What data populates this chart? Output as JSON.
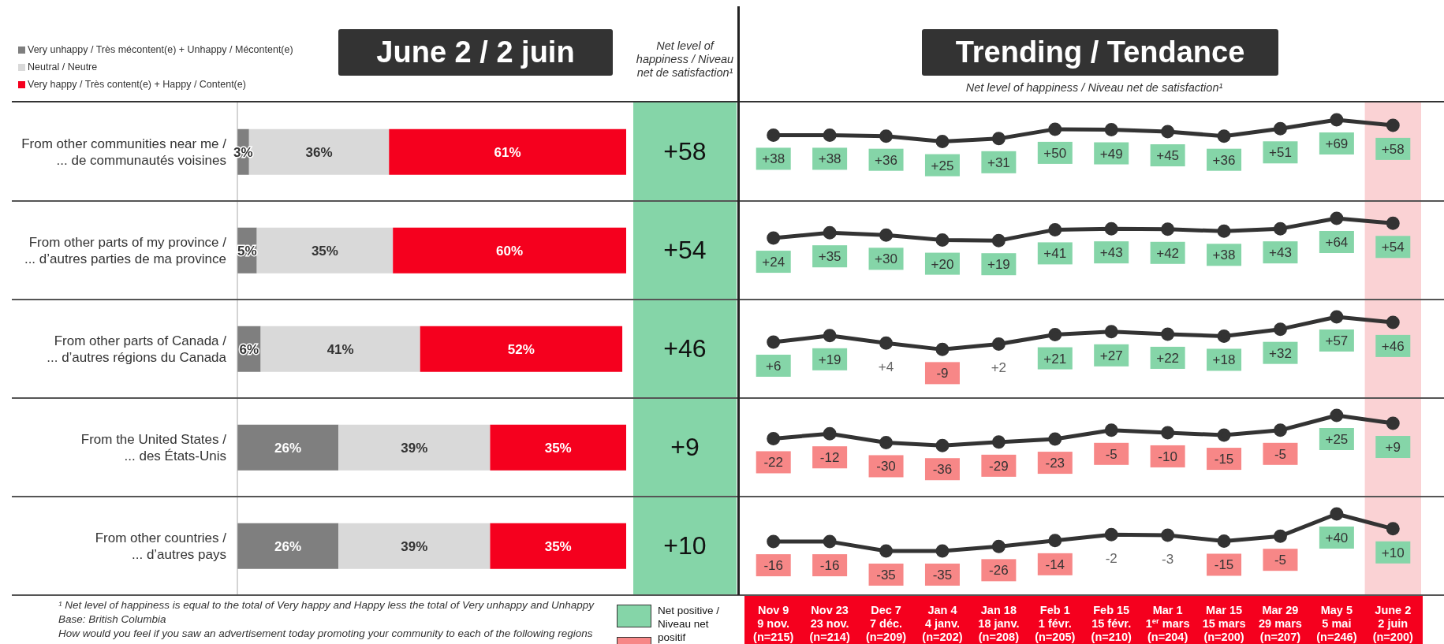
{
  "chart_data": [
    {
      "type": "bar",
      "orientation": "horizontal",
      "stacked": true,
      "title": "June 2 / 2 juin",
      "legend": "top left",
      "categories": [
        "From other communities near me /\n... de communautés voisines",
        "From other parts of my province /\n... d’autres parties de ma province",
        "From other parts of Canada /\n... d’autres régions du Canada",
        "From the United States /\n... des États-Unis",
        "From other countries /\n... d’autres pays"
      ],
      "series": [
        {
          "name": "Very unhappy / Très mécontent(e) + Unhappy / Mécontent(e)",
          "color": "#7f7f7f",
          "values": [
            3,
            5,
            6,
            26,
            26
          ],
          "value_labels": [
            "3%",
            "5%",
            "6%",
            "26%",
            "26%"
          ]
        },
        {
          "name": "Neutral / Neutre",
          "color": "#d9d9d9",
          "values": [
            36,
            35,
            41,
            39,
            39
          ],
          "value_labels": [
            "36%",
            "35%",
            "41%",
            "39%",
            "39%"
          ]
        },
        {
          "name": "Very happy / Très content(e) + Happy / Content(e)",
          "color": "#f5001e",
          "values": [
            61,
            60,
            52,
            35,
            35
          ],
          "value_labels": [
            "61%",
            "60%",
            "52%",
            "35%",
            "35%"
          ]
        }
      ]
    },
    {
      "type": "other",
      "title": "Net level of happiness / Niveau net de satisfaction¹",
      "categories": [
        null,
        null,
        null,
        null,
        null
      ],
      "values": [
        58,
        54,
        46,
        9,
        10
      ],
      "value_labels": [
        "+58",
        "+54",
        "+46",
        "+9",
        "+10"
      ],
      "color": "#85d5a8"
    },
    {
      "type": "line",
      "title": "Trending / Tendance",
      "subtitle": "Net level of happiness / Niveau net de satisfaction¹",
      "tick_labels": false,
      "marker": "circle",
      "line_style": "solid",
      "categories": [
        "Nov 9\n9 nov.\n(n=215)",
        "Nov 23\n23 nov.\n(n=214)",
        "Dec 7\n7 déc.\n(n=209)",
        "Jan 4\n4 janv.\n(n=202)",
        "Jan 18\n18 janv.\n(n=208)",
        "Feb 1\n1 févr.\n(n=205)",
        "Feb 15\n15 févr.\n(n=210)",
        "Mar 1\n1$^{er}$ mars\n(n=204)",
        "Mar 15\n15 mars\n(n=200)",
        "Mar 29\n29 mars\n(n=207)",
        "May 5\n5 mai\n(n=246)",
        "June 2\n2 juin\n(n=200)"
      ],
      "color": "#333333",
      "values": [
        38,
        38,
        36,
        25,
        31,
        50,
        49,
        45,
        36,
        51,
        69,
        58
      ],
      "value_labels": [
        "+38",
        "+38",
        "+36",
        "+25",
        "+31",
        "+50",
        "+49",
        "+45",
        "+36",
        "+51",
        "+69",
        "+58"
      ],
      "colors": [
        "#85d5a8",
        "#85d5a8",
        "#85d5a8",
        "#85d5a8",
        "#85d5a8",
        "#85d5a8",
        "#85d5a8",
        "#85d5a8",
        "#85d5a8",
        "#85d5a8",
        "#85d5a8",
        "#85d5a8"
      ],
      "bands": [
        {
          "axis": "x",
          "from": "June 2\n2 juin\n(n=200)",
          "to": "June 2\n2 juin\n(n=200)",
          "color": "#fad2d4"
        }
      ]
    },
    {
      "type": "line",
      "tick_labels": false,
      "marker": "circle",
      "line_style": "solid",
      "categories": [
        "Nov 9\n9 nov.\n(n=215)",
        "Nov 23\n23 nov.\n(n=214)",
        "Dec 7\n7 déc.\n(n=209)",
        "Jan 4\n4 janv.\n(n=202)",
        "Jan 18\n18 janv.\n(n=208)",
        "Feb 1\n1 févr.\n(n=205)",
        "Feb 15\n15 févr.\n(n=210)",
        "Mar 1\n1$^{er}$ mars\n(n=204)",
        "Mar 15\n15 mars\n(n=200)",
        "Mar 29\n29 mars\n(n=207)",
        "May 5\n5 mai\n(n=246)",
        "June 2\n2 juin\n(n=200)"
      ],
      "color": "#333333",
      "values": [
        24,
        35,
        30,
        20,
        19,
        41,
        43,
        42,
        38,
        43,
        64,
        54
      ],
      "value_labels": [
        "+24",
        "+35",
        "+30",
        "+20",
        "+19",
        "+41",
        "+43",
        "+42",
        "+38",
        "+43",
        "+64",
        "+54"
      ],
      "colors": [
        "#85d5a8",
        "#85d5a8",
        "#85d5a8",
        "#85d5a8",
        "#85d5a8",
        "#85d5a8",
        "#85d5a8",
        "#85d5a8",
        "#85d5a8",
        "#85d5a8",
        "#85d5a8",
        "#85d5a8"
      ],
      "bands": [
        {
          "axis": "x",
          "from": "June 2\n2 juin\n(n=200)",
          "to": "June 2\n2 juin\n(n=200)",
          "color": "#fad2d4"
        }
      ]
    },
    {
      "type": "line",
      "tick_labels": false,
      "marker": "circle",
      "line_style": "solid",
      "categories": [
        "Nov 9\n9 nov.\n(n=215)",
        "Nov 23\n23 nov.\n(n=214)",
        "Dec 7\n7 déc.\n(n=209)",
        "Jan 4\n4 janv.\n(n=202)",
        "Jan 18\n18 janv.\n(n=208)",
        "Feb 1\n1 févr.\n(n=205)",
        "Feb 15\n15 févr.\n(n=210)",
        "Mar 1\n1$^{er}$ mars\n(n=204)",
        "Mar 15\n15 mars\n(n=200)",
        "Mar 29\n29 mars\n(n=207)",
        "May 5\n5 mai\n(n=246)",
        "June 2\n2 juin\n(n=200)"
      ],
      "color": "#333333",
      "values": [
        6,
        19,
        4,
        -9,
        2,
        21,
        27,
        22,
        18,
        32,
        57,
        46
      ],
      "value_labels": [
        "+6",
        "+19",
        "+4",
        "-9",
        "+2",
        "+21",
        "+27",
        "+22",
        "+18",
        "+32",
        "+57",
        "+46"
      ],
      "colors": [
        "#85d5a8",
        "#85d5a8",
        null,
        "#f78787",
        null,
        "#85d5a8",
        "#85d5a8",
        "#85d5a8",
        "#85d5a8",
        "#85d5a8",
        "#85d5a8",
        "#85d5a8"
      ],
      "bands": [
        {
          "axis": "x",
          "from": "June 2\n2 juin\n(n=200)",
          "to": "June 2\n2 juin\n(n=200)",
          "color": "#fad2d4"
        }
      ]
    },
    {
      "type": "line",
      "tick_labels": false,
      "marker": "circle",
      "line_style": "solid",
      "categories": [
        "Nov 9\n9 nov.\n(n=215)",
        "Nov 23\n23 nov.\n(n=214)",
        "Dec 7\n7 déc.\n(n=209)",
        "Jan 4\n4 janv.\n(n=202)",
        "Jan 18\n18 janv.\n(n=208)",
        "Feb 1\n1 févr.\n(n=205)",
        "Feb 15\n15 févr.\n(n=210)",
        "Mar 1\n1$^{er}$ mars\n(n=204)",
        "Mar 15\n15 mars\n(n=200)",
        "Mar 29\n29 mars\n(n=207)",
        "May 5\n5 mai\n(n=246)",
        "June 2\n2 juin\n(n=200)"
      ],
      "color": "#333333",
      "values": [
        -22,
        -12,
        -30,
        -36,
        -29,
        -23,
        -5,
        -10,
        -15,
        -5,
        25,
        9
      ],
      "value_labels": [
        "-22",
        "-12",
        "-30",
        "-36",
        "-29",
        "-23",
        "-5",
        "-10",
        "-15",
        "-5",
        "+25",
        "+9"
      ],
      "colors": [
        "#f78787",
        "#f78787",
        "#f78787",
        "#f78787",
        "#f78787",
        "#f78787",
        "#f78787",
        "#f78787",
        "#f78787",
        "#f78787",
        "#85d5a8",
        "#85d5a8"
      ],
      "bands": [
        {
          "axis": "x",
          "from": "June 2\n2 juin\n(n=200)",
          "to": "June 2\n2 juin\n(n=200)",
          "color": "#fad2d4"
        }
      ]
    },
    {
      "type": "line",
      "tick_labels": "x",
      "marker": "circle",
      "line_style": "solid",
      "categories": [
        "Nov 9\n9 nov.\n(n=215)",
        "Nov 23\n23 nov.\n(n=214)",
        "Dec 7\n7 déc.\n(n=209)",
        "Jan 4\n4 janv.\n(n=202)",
        "Jan 18\n18 janv.\n(n=208)",
        "Feb 1\n1 févr.\n(n=205)",
        "Feb 15\n15 févr.\n(n=210)",
        "Mar 1\n1$^{er}$ mars\n(n=204)",
        "Mar 15\n15 mars\n(n=200)",
        "Mar 29\n29 mars\n(n=207)",
        "May 5\n5 mai\n(n=246)",
        "June 2\n2 juin\n(n=200)"
      ],
      "color": "#333333",
      "values": [
        -16,
        -16,
        -35,
        -35,
        -26,
        -14,
        -2,
        -3,
        -15,
        -5,
        40,
        10
      ],
      "value_labels": [
        "-16",
        "-16",
        "-35",
        "-35",
        "-26",
        "-14",
        "-2",
        "-3",
        "-15",
        "-5",
        "+40",
        "+10"
      ],
      "colors": [
        "#f78787",
        "#f78787",
        "#f78787",
        "#f78787",
        "#f78787",
        "#f78787",
        null,
        null,
        "#f78787",
        "#f78787",
        "#85d5a8",
        "#85d5a8"
      ],
      "bands": [
        {
          "axis": "x",
          "from": "June 2\n2 juin\n(n=200)",
          "to": "June 2\n2 juin\n(n=200)",
          "color": "#fad2d4"
        }
      ],
      "annotations": [
        "¹ Net level of happiness is equal to the total of Very happy and Happy less the total of Very unhappy and Unhappy",
        "Base: British Columbia",
        "How would you feel if you saw an advertisement today promoting your community to each of the following regions",
        "Net positive / Niveau net positif"
      ]
    }
  ]
}
